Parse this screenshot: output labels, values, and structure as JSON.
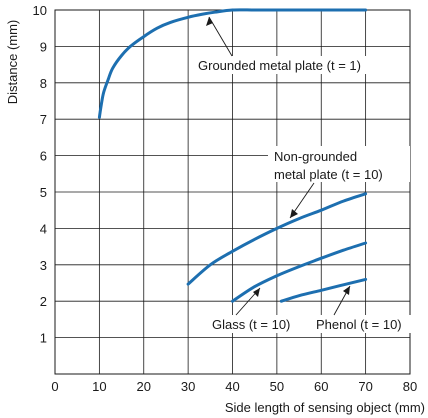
{
  "chart_data": {
    "type": "line",
    "xlabel": "Side length of sensing object (mm)",
    "ylabel": "Distance (mm)",
    "xlim": [
      0,
      80
    ],
    "ylim": [
      0,
      10
    ],
    "xticks": [
      0,
      10,
      20,
      30,
      40,
      50,
      60,
      70,
      80
    ],
    "yticks": [
      1,
      2,
      3,
      4,
      5,
      6,
      7,
      8,
      9,
      10
    ],
    "grid": true,
    "line_color": "#1d6fb0",
    "series": [
      {
        "name": "Grounded metal plate (t = 1)",
        "x": [
          10,
          10.5,
          11,
          12,
          13,
          15,
          17,
          20,
          23,
          26,
          30,
          33,
          36,
          40,
          45,
          50,
          55,
          60,
          65,
          70
        ],
        "y": [
          7.05,
          7.45,
          7.75,
          8.1,
          8.4,
          8.75,
          9.0,
          9.27,
          9.5,
          9.66,
          9.8,
          9.88,
          9.94,
          10.0,
          10.0,
          10.0,
          10.0,
          10.0,
          10.0,
          10.0
        ]
      },
      {
        "name": "Non-grounded metal plate (t = 10)",
        "x": [
          30,
          35,
          40,
          45,
          50,
          55,
          60,
          65,
          70
        ],
        "y": [
          2.47,
          3.0,
          3.37,
          3.7,
          4.0,
          4.27,
          4.5,
          4.75,
          4.95
        ]
      },
      {
        "name": "Glass (t = 10)",
        "x": [
          40,
          45,
          50,
          55,
          60,
          65,
          70
        ],
        "y": [
          2.0,
          2.4,
          2.7,
          2.95,
          3.18,
          3.4,
          3.6
        ]
      },
      {
        "name": "Phenol (t = 10)",
        "x": [
          51,
          55,
          60,
          65,
          70
        ],
        "y": [
          2.0,
          2.15,
          2.3,
          2.45,
          2.6
        ]
      }
    ],
    "annotations": {
      "grounded": "Grounded metal plate (t = 1)",
      "nongrounded_line1": "Non-grounded",
      "nongrounded_line2": "metal plate (t = 10)",
      "glass": "Glass (t = 10)",
      "phenol": "Phenol (t = 10)"
    }
  }
}
